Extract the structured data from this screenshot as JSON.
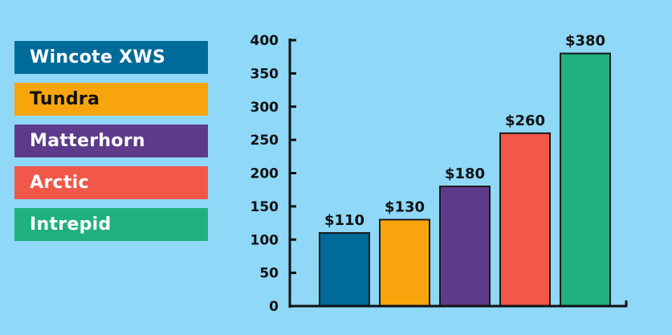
{
  "chart_data": {
    "type": "bar",
    "categories": [
      "Wincote XWS",
      "Tundra",
      "Matterhorn",
      "Arctic",
      "Intrepid"
    ],
    "values": [
      110,
      130,
      180,
      260,
      380
    ],
    "data_labels": [
      "$110",
      "$130",
      "$180",
      "$260",
      "$380"
    ],
    "colors": [
      "#006b99",
      "#f8a50d",
      "#5e3b8a",
      "#f2584a",
      "#1fb07f"
    ],
    "legend_text_colors": [
      "#ffffff",
      "#111111",
      "#ffffff",
      "#ffffff",
      "#ffffff"
    ],
    "yticks": [
      0,
      50,
      100,
      150,
      200,
      250,
      300,
      350,
      400
    ],
    "ytick_labels": [
      "0",
      "50",
      "100",
      "150",
      "200",
      "250",
      "300",
      "350",
      "400"
    ],
    "ylim": [
      0,
      400
    ],
    "title": "",
    "xlabel": "",
    "ylabel": "",
    "legend_position": "left",
    "grid": false
  },
  "background_color": "#8fd8f8"
}
